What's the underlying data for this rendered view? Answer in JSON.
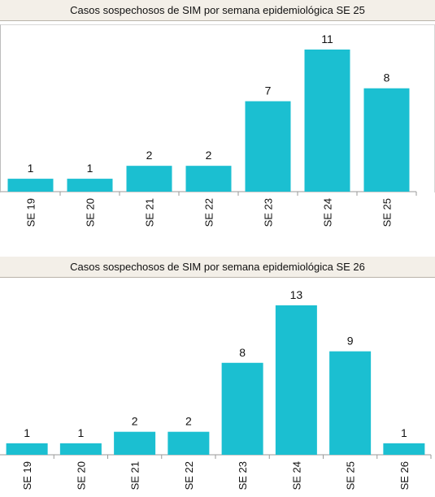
{
  "chart_data": [
    {
      "type": "bar",
      "title": "Casos sospechosos de SIM por semana epidemiológica SE 25",
      "categories": [
        "SE 19",
        "SE 20",
        "SE 21",
        "SE 22",
        "SE 23",
        "SE 24",
        "SE 25"
      ],
      "values": [
        1,
        1,
        2,
        2,
        7,
        11,
        8
      ],
      "xlabel": "",
      "ylabel": "",
      "ylim": [
        0,
        11
      ],
      "grid": false,
      "colors": {
        "bar": "#1bbfd1"
      }
    },
    {
      "type": "bar",
      "title": "Casos sospechosos de SIM por semana epidemiológica SE 26",
      "categories": [
        "SE 19",
        "SE 20",
        "SE 21",
        "SE 22",
        "SE 23",
        "SE 24",
        "SE 25",
        "SE 26"
      ],
      "values": [
        1,
        1,
        2,
        2,
        8,
        13,
        9,
        1
      ],
      "xlabel": "",
      "ylabel": "",
      "ylim": [
        0,
        13
      ],
      "grid": false,
      "colors": {
        "bar": "#1bbfd1"
      }
    }
  ]
}
